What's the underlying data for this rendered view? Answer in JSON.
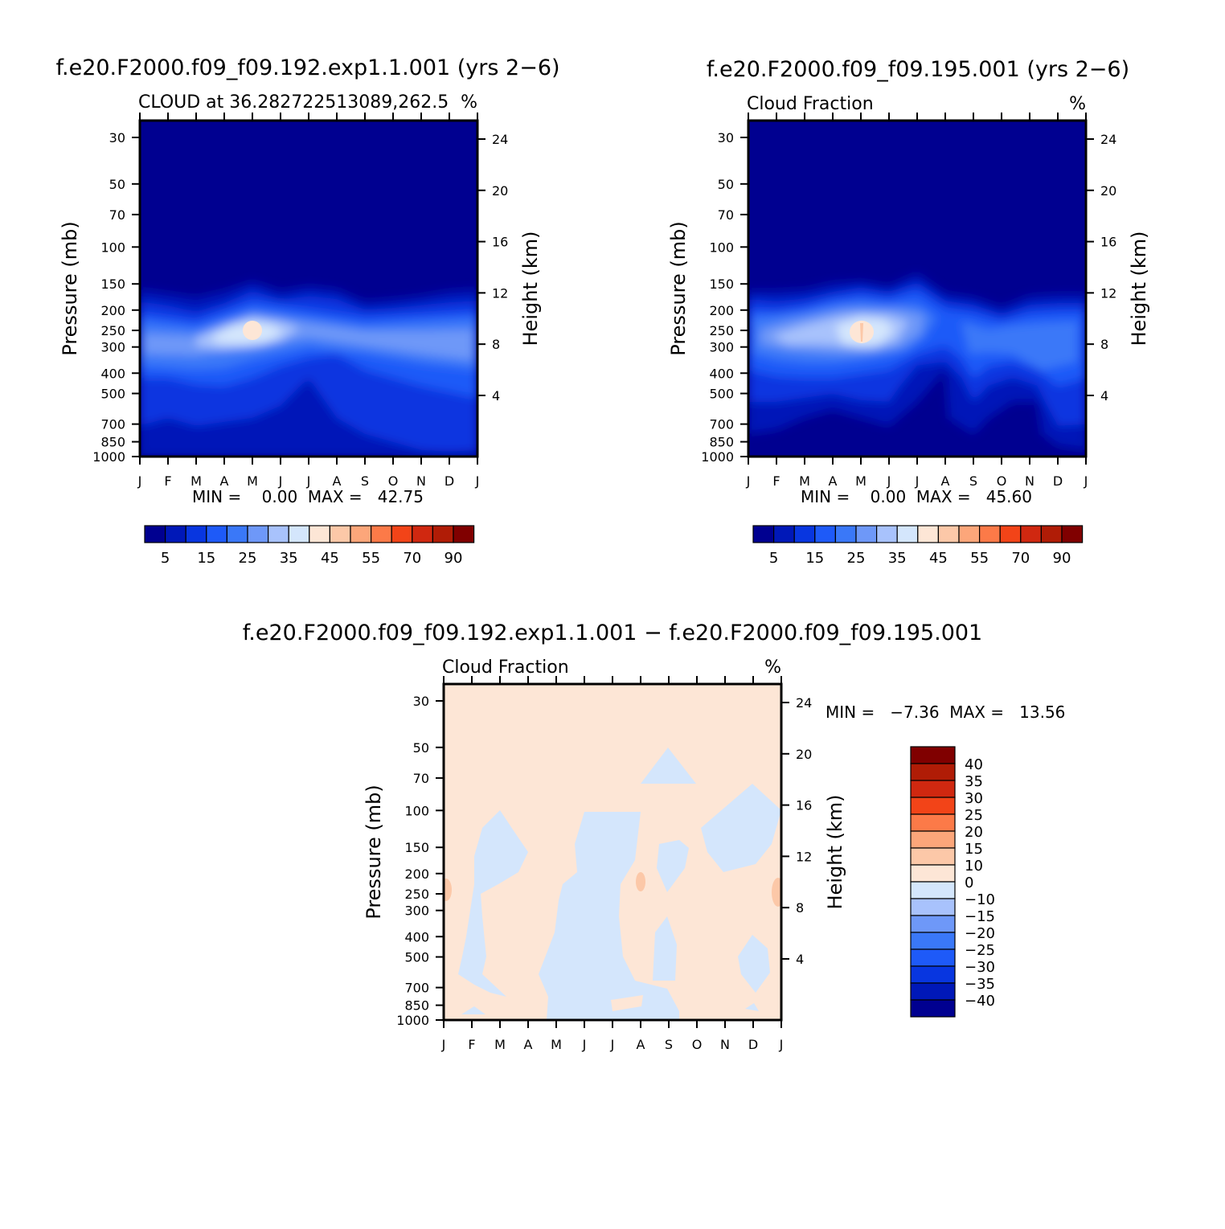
{
  "palette": {
    "blue": [
      "#000090",
      "#0018b8",
      "#0836e0",
      "#1e5af8",
      "#3a78f8",
      "#6e98f8",
      "#a8c2fc",
      "#d4e6fc"
    ],
    "warm": [
      "#fde6d6",
      "#fcc8a8",
      "#fca67a",
      "#fc7a48",
      "#f24418",
      "#d02810",
      "#b01c06",
      "#800000"
    ],
    "diff": [
      "#000090",
      "#0018b8",
      "#0836e0",
      "#1e5af8",
      "#3a78f8",
      "#6e98f8",
      "#a8c2fc",
      "#d4e6fc",
      "#fde6d6",
      "#fcc8a8",
      "#fca67a",
      "#fc7a48",
      "#f24418",
      "#d02810",
      "#b01c06",
      "#800000"
    ]
  },
  "chart_data": [
    {
      "id": "panel1",
      "type": "contour",
      "case_title": "f.e20.F2000.f09_f09.192.exp1.1.001 (yrs 2−6)",
      "subtitle": "CLOUD at 36.282722513089,262.5",
      "units": "%",
      "ylabel": "Pressure (mb)",
      "ylabel_right": "Height (km)",
      "pressure_ticks": [
        "30",
        "50",
        "70",
        "100",
        "150",
        "200",
        "250",
        "300",
        "400",
        "500",
        "700",
        "850",
        "1000"
      ],
      "height_ticks": [
        "24",
        "20",
        "16",
        "12",
        "8",
        "4"
      ],
      "months": [
        "J",
        "F",
        "M",
        "A",
        "M",
        "J",
        "J",
        "A",
        "S",
        "O",
        "N",
        "D",
        "J"
      ],
      "min": "0.00",
      "max": "42.75",
      "minmax_text": "MIN =    0.00  MAX =   42.75",
      "colorbar_labels": [
        "5",
        "15",
        "25",
        "35",
        "45",
        "55",
        "70",
        "90"
      ],
      "features": {
        "cloud_top_mb": [
          165,
          175,
          185,
          180,
          155,
          170,
          160,
          165,
          190,
          185,
          180,
          175,
          165
        ],
        "peak_month_index": 4,
        "peak_pressure_mb": 250,
        "peak_value": 42.75
      }
    },
    {
      "id": "panel2",
      "type": "contour",
      "case_title": "f.e20.F2000.f09_f09.195.001 (yrs 2−6)",
      "subtitle": "Cloud Fraction",
      "units": "%",
      "ylabel": "Pressure (mb)",
      "ylabel_right": "Height (km)",
      "pressure_ticks": [
        "30",
        "50",
        "70",
        "100",
        "150",
        "200",
        "250",
        "300",
        "400",
        "500",
        "700",
        "850",
        "1000"
      ],
      "height_ticks": [
        "24",
        "20",
        "16",
        "12",
        "8",
        "4"
      ],
      "months": [
        "J",
        "F",
        "M",
        "A",
        "M",
        "J",
        "J",
        "A",
        "S",
        "O",
        "N",
        "D",
        "J"
      ],
      "min": "0.00",
      "max": "45.60",
      "minmax_text": "MIN =    0.00  MAX =   45.60",
      "colorbar_labels": [
        "5",
        "15",
        "25",
        "35",
        "45",
        "55",
        "70",
        "90"
      ],
      "features": {
        "cloud_top_mb": [
          170,
          175,
          170,
          160,
          150,
          165,
          140,
          170,
          180,
          195,
          175,
          175,
          170
        ],
        "peak_month_index": 4,
        "peak_pressure_mb": 250,
        "peak_value": 45.6
      }
    },
    {
      "id": "diff",
      "type": "contour",
      "case_title": "f.e20.F2000.f09_f09.192.exp1.1.001 − f.e20.F2000.f09_f09.195.001",
      "subtitle": "Cloud Fraction",
      "units": "%",
      "ylabel": "Pressure (mb)",
      "ylabel_right": "Height (km)",
      "pressure_ticks": [
        "30",
        "50",
        "70",
        "100",
        "150",
        "200",
        "250",
        "300",
        "400",
        "500",
        "700",
        "850",
        "1000"
      ],
      "height_ticks": [
        "24",
        "20",
        "16",
        "12",
        "8",
        "4"
      ],
      "months": [
        "J",
        "F",
        "M",
        "A",
        "M",
        "J",
        "J",
        "A",
        "S",
        "O",
        "N",
        "D",
        "J"
      ],
      "min": "-7.36",
      "max": "13.56",
      "minmax_text": "MIN =   −7.36  MAX =   13.56",
      "colorbar_labels": [
        "40",
        "35",
        "30",
        "25",
        "20",
        "15",
        "10",
        "0",
        "−10",
        "−15",
        "−20",
        "−25",
        "−30",
        "−35",
        "−40"
      ],
      "levels": [
        -40,
        -35,
        -30,
        -25,
        -20,
        -15,
        -10,
        0,
        10,
        15,
        20,
        25,
        30,
        35,
        40
      ]
    }
  ]
}
